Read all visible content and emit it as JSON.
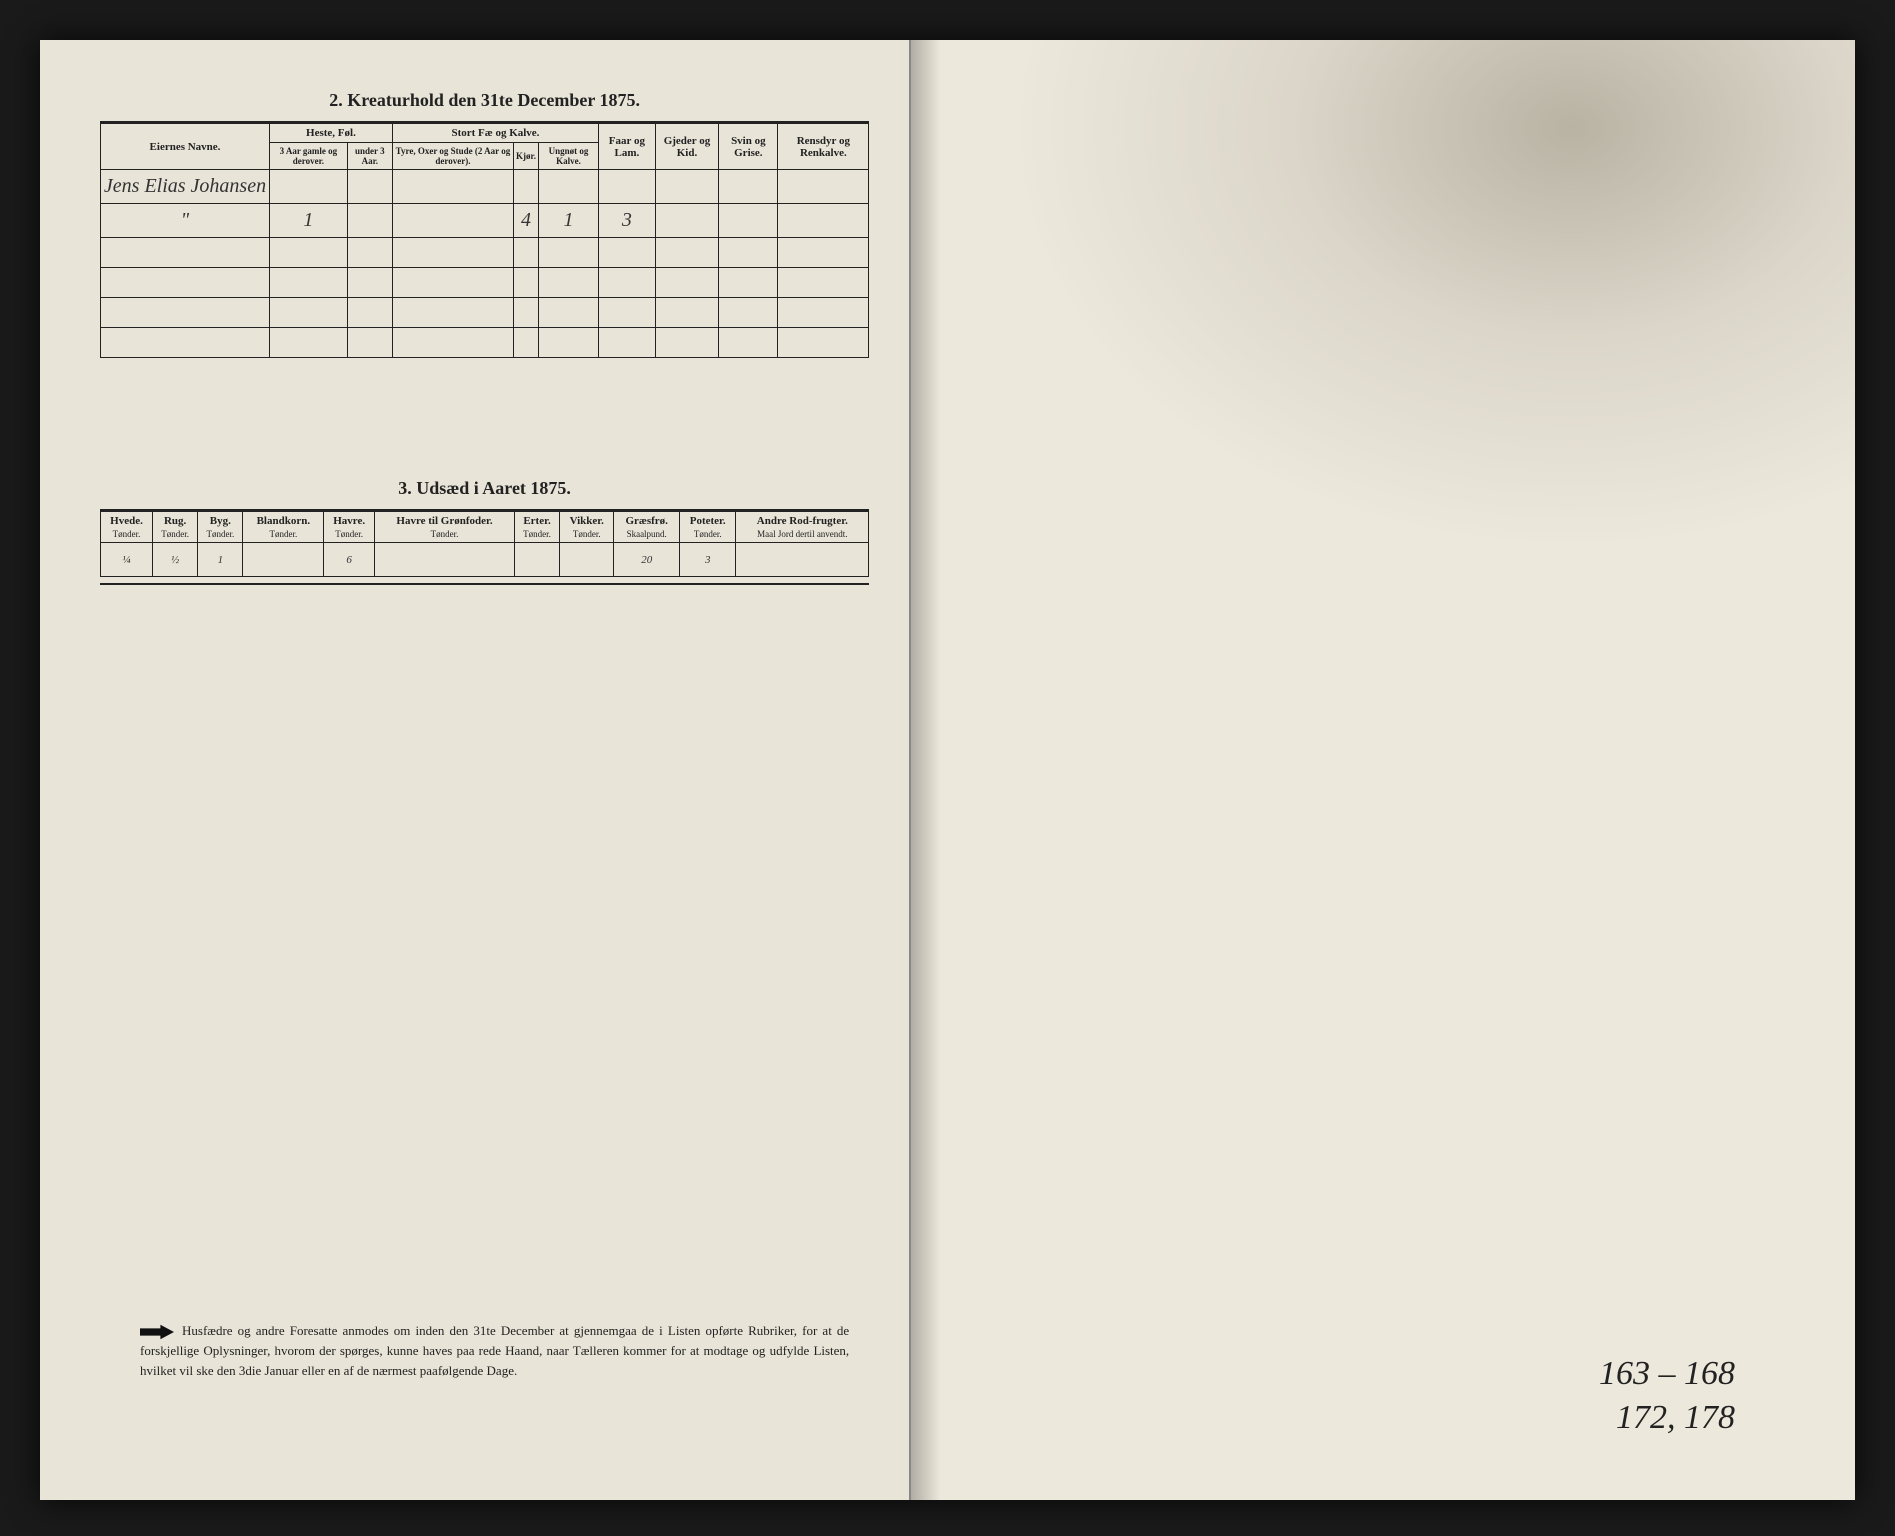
{
  "section2": {
    "title": "2.  Kreaturhold den 31te December 1875.",
    "headers": {
      "owner": "Eiernes Navne.",
      "horses_group": "Heste, Føl.",
      "horses_old": "3 Aar gamle og derover.",
      "horses_young": "under 3 Aar.",
      "cattle_group": "Stort Fæ og Kalve.",
      "cattle_bulls": "Tyre, Oxer og Stude (2 Aar og derover).",
      "cattle_cows": "Kjør.",
      "cattle_young": "Ungnøt og Kalve.",
      "sheep": "Faar og Lam.",
      "goats": "Gjeder og Kid.",
      "pigs": "Svin og Grise.",
      "reindeer": "Rensdyr og Renkalve."
    },
    "row1": {
      "owner": "Jens Elias Johansen",
      "horses_old": "",
      "horses_young": "",
      "cattle_bulls": "",
      "cattle_cows": "",
      "cattle_young": "",
      "sheep": "",
      "goats": "",
      "pigs": "",
      "reindeer": ""
    },
    "row2": {
      "owner": "\"",
      "horses_old": "1",
      "horses_young": "",
      "cattle_bulls": "",
      "cattle_cows": "4",
      "cattle_young": "1",
      "sheep": "3",
      "goats": "",
      "pigs": "",
      "reindeer": ""
    }
  },
  "section3": {
    "title": "3.  Udsæd i Aaret 1875.",
    "cols": {
      "hvede": {
        "label": "Hvede.",
        "unit": "Tønder."
      },
      "rug": {
        "label": "Rug.",
        "unit": "Tønder."
      },
      "byg": {
        "label": "Byg.",
        "unit": "Tønder."
      },
      "blandkorn": {
        "label": "Blandkorn.",
        "unit": "Tønder."
      },
      "havre": {
        "label": "Havre.",
        "unit": "Tønder."
      },
      "havre_gron": {
        "label": "Havre til Grønfoder.",
        "unit": "Tønder."
      },
      "erter": {
        "label": "Erter.",
        "unit": "Tønder."
      },
      "vikker": {
        "label": "Vikker.",
        "unit": "Tønder."
      },
      "graesfro": {
        "label": "Græsfrø.",
        "unit": "Skaalpund."
      },
      "poteter": {
        "label": "Poteter.",
        "unit": "Tønder."
      },
      "rodfrugter": {
        "label": "Andre Rod-frugter.",
        "unit": "Maal Jord dertil anvendt."
      }
    },
    "row": {
      "hvede": "¼",
      "rug": "½",
      "byg": "1",
      "blandkorn": "",
      "havre": "6",
      "havre_gron": "",
      "erter": "",
      "vikker": "",
      "graesfro": "20",
      "poteter": "3",
      "rodfrugter": ""
    }
  },
  "notice": "Husfædre og andre Foresatte anmodes om inden den 31te December at gjennemgaa de i Listen opførte Rubriker, for at de forskjellige Oplysninger, hvorom der spørges, kunne haves paa rede Haand, naar Tælleren kommer for at modtage og udfylde Listen, hvilket vil ske den 3die Januar eller en af de nærmest paafølgende Dage.",
  "pagenums": {
    "line1": "163 – 168",
    "line2": "172, 178"
  },
  "colors": {
    "paper": "#e8e4d8",
    "paper_right": "#ece8dc",
    "ink": "#222222",
    "background": "#1a1a1a"
  }
}
